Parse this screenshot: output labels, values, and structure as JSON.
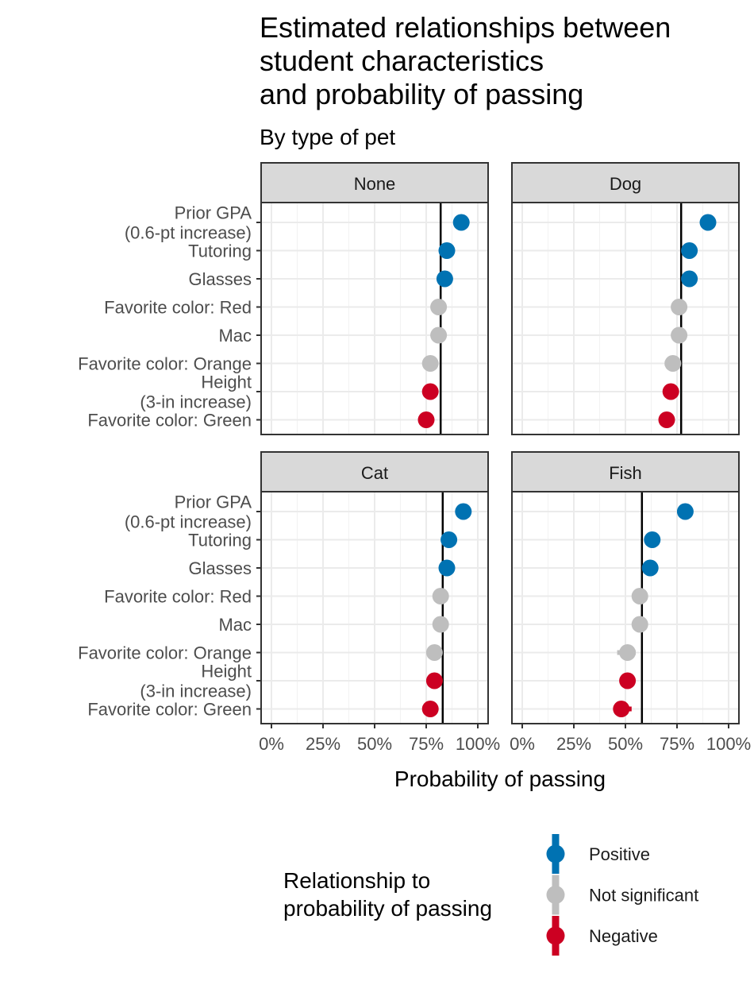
{
  "chart_data": {
    "type": "dot-interval",
    "title": [
      "Estimated relationships between",
      "student characteristics",
      "and probability of passing"
    ],
    "subtitle": "By type of pet",
    "xlabel": "Probability of passing",
    "xlim": [
      0,
      100
    ],
    "x_ticks": [
      {
        "value": 0,
        "label": "0%"
      },
      {
        "value": 25,
        "label": "25%"
      },
      {
        "value": 50,
        "label": "50%"
      },
      {
        "value": 75,
        "label": "75%"
      },
      {
        "value": 100,
        "label": "100%"
      }
    ],
    "rows": [
      [
        "Prior GPA",
        "(0.6-pt increase)"
      ],
      [
        "Tutoring"
      ],
      [
        "Glasses"
      ],
      [
        "Favorite color: Red"
      ],
      [
        "Mac"
      ],
      [
        "Favorite color: Orange"
      ],
      [
        "Height",
        "(3-in increase)"
      ],
      [
        "Favorite color: Green"
      ]
    ],
    "legend": {
      "title": [
        "Relationship to",
        "probability of passing"
      ],
      "items": [
        {
          "key": "positive",
          "label": "Positive",
          "color": "#0072b2"
        },
        {
          "key": "ns",
          "label": "Not significant",
          "color": "#bebebe"
        },
        {
          "key": "negative",
          "label": "Negative",
          "color": "#cc0022"
        }
      ]
    },
    "panels": [
      {
        "name": "None",
        "baseline": 82,
        "points": [
          {
            "value": 92,
            "lo": 90,
            "hi": 94,
            "sig": "positive"
          },
          {
            "value": 85,
            "lo": 84,
            "hi": 86,
            "sig": "positive"
          },
          {
            "value": 84,
            "lo": 83,
            "hi": 85,
            "sig": "positive"
          },
          {
            "value": 81,
            "lo": 80,
            "hi": 82,
            "sig": "ns"
          },
          {
            "value": 81,
            "lo": 80,
            "hi": 82,
            "sig": "ns"
          },
          {
            "value": 77,
            "lo": 74,
            "hi": 80,
            "sig": "ns"
          },
          {
            "value": 77,
            "lo": 76,
            "hi": 78,
            "sig": "negative"
          },
          {
            "value": 75,
            "lo": 73,
            "hi": 77,
            "sig": "negative"
          }
        ]
      },
      {
        "name": "Dog",
        "baseline": 77,
        "points": [
          {
            "value": 90,
            "lo": 89,
            "hi": 91,
            "sig": "positive"
          },
          {
            "value": 81,
            "lo": 80,
            "hi": 82,
            "sig": "positive"
          },
          {
            "value": 81,
            "lo": 80,
            "hi": 82,
            "sig": "positive"
          },
          {
            "value": 76,
            "lo": 75,
            "hi": 77,
            "sig": "ns"
          },
          {
            "value": 76,
            "lo": 75,
            "hi": 77,
            "sig": "ns"
          },
          {
            "value": 73,
            "lo": 69,
            "hi": 75,
            "sig": "ns"
          },
          {
            "value": 72,
            "lo": 71,
            "hi": 74,
            "sig": "negative"
          },
          {
            "value": 70,
            "lo": 68,
            "hi": 72,
            "sig": "negative"
          }
        ]
      },
      {
        "name": "Cat",
        "baseline": 83,
        "points": [
          {
            "value": 93,
            "lo": 91,
            "hi": 95,
            "sig": "positive"
          },
          {
            "value": 86,
            "lo": 84,
            "hi": 87,
            "sig": "positive"
          },
          {
            "value": 85,
            "lo": 84,
            "hi": 86,
            "sig": "positive"
          },
          {
            "value": 82,
            "lo": 81,
            "hi": 83,
            "sig": "ns"
          },
          {
            "value": 82,
            "lo": 81,
            "hi": 83,
            "sig": "ns"
          },
          {
            "value": 79,
            "lo": 76,
            "hi": 82,
            "sig": "ns"
          },
          {
            "value": 79,
            "lo": 78,
            "hi": 80,
            "sig": "negative"
          },
          {
            "value": 77,
            "lo": 75,
            "hi": 79,
            "sig": "negative"
          }
        ]
      },
      {
        "name": "Fish",
        "baseline": 58,
        "points": [
          {
            "value": 79,
            "lo": 78,
            "hi": 80,
            "sig": "positive"
          },
          {
            "value": 63,
            "lo": 62,
            "hi": 64,
            "sig": "positive"
          },
          {
            "value": 62,
            "lo": 61,
            "hi": 63,
            "sig": "positive"
          },
          {
            "value": 57,
            "lo": 56,
            "hi": 58,
            "sig": "ns"
          },
          {
            "value": 57,
            "lo": 56,
            "hi": 58,
            "sig": "ns"
          },
          {
            "value": 51,
            "lo": 46,
            "hi": 55,
            "sig": "ns"
          },
          {
            "value": 51,
            "lo": 49,
            "hi": 53,
            "sig": "negative"
          },
          {
            "value": 48,
            "lo": 45,
            "hi": 53,
            "sig": "negative"
          }
        ]
      }
    ]
  }
}
